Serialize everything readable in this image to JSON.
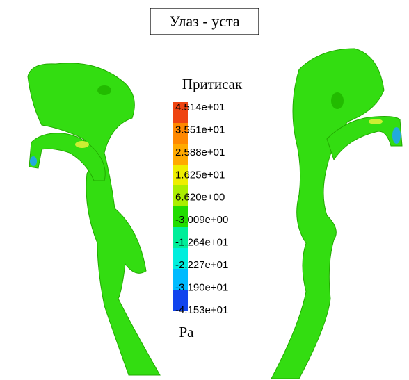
{
  "header": {
    "title": "Улаз - уста"
  },
  "legend": {
    "title": "Притисак",
    "unit": "Pa",
    "labels": [
      "4.514e+01",
      "3.551e+01",
      "2.588e+01",
      "1.625e+01",
      "6.620e+00",
      "-3.009e+00",
      "-1.264e+01",
      "-2.227e+01",
      "-3.190e+01",
      "-4.153e+01"
    ]
  }
}
